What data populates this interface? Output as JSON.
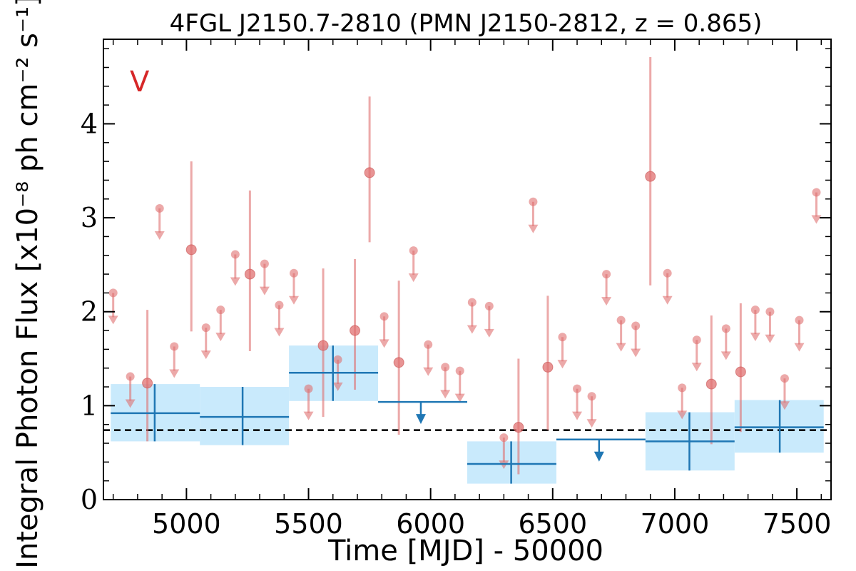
{
  "chart_data": {
    "type": "scatter",
    "title": "4FGL J2150.7-2810 (PMN J2150-2812, z = 0.865)",
    "xlabel": "Time [MJD] - 50000",
    "ylabel": "Integral Photon Flux [x10⁻⁸ ph cm⁻² s⁻¹]",
    "xlim": [
      4660,
      7640
    ],
    "ylim": [
      0,
      4.9
    ],
    "xticks": [
      5000,
      5500,
      6000,
      6500,
      7000,
      7500
    ],
    "xtick_labels": [
      "5000",
      "5500",
      "6000",
      "6500",
      "7000",
      "7500"
    ],
    "yticks": [
      0,
      1,
      2,
      3,
      4
    ],
    "ytick_labels": [
      "0",
      "1",
      "2",
      "3",
      "4"
    ],
    "panel_label": "V",
    "grid": false,
    "reference_level": 0.74,
    "colors": {
      "short_bins": "#e07070",
      "long_bins": "#1f77b4",
      "long_band": "#c9eafc",
      "reference": "#000000",
      "panel_label": "#d62728"
    },
    "series": [
      {
        "type": "short-bin detections",
        "points": [
          {
            "x": 4840,
            "y": 1.24,
            "lo": 0.62,
            "hi": 2.02
          },
          {
            "x": 5020,
            "y": 2.66,
            "lo": 1.79,
            "hi": 3.6
          },
          {
            "x": 5260,
            "y": 2.4,
            "lo": 1.58,
            "hi": 3.29
          },
          {
            "x": 5560,
            "y": 1.64,
            "lo": 0.88,
            "hi": 2.46
          },
          {
            "x": 5690,
            "y": 1.8,
            "lo": 1.17,
            "hi": 2.56
          },
          {
            "x": 5750,
            "y": 3.48,
            "lo": 2.74,
            "hi": 4.29
          },
          {
            "x": 5870,
            "y": 1.46,
            "lo": 0.69,
            "hi": 2.33
          },
          {
            "x": 6360,
            "y": 0.77,
            "lo": 0.27,
            "hi": 1.5
          },
          {
            "x": 6480,
            "y": 1.41,
            "lo": 0.74,
            "hi": 2.17
          },
          {
            "x": 6900,
            "y": 3.44,
            "lo": 2.28,
            "hi": 4.71
          },
          {
            "x": 7150,
            "y": 1.23,
            "lo": 0.59,
            "hi": 1.96
          },
          {
            "x": 7270,
            "y": 1.36,
            "lo": 0.72,
            "hi": 2.09
          }
        ]
      },
      {
        "type": "short-bin upper limits",
        "points": [
          {
            "x": 4700,
            "y": 2.2
          },
          {
            "x": 4770,
            "y": 1.31
          },
          {
            "x": 4890,
            "y": 3.1
          },
          {
            "x": 4950,
            "y": 1.63
          },
          {
            "x": 5080,
            "y": 1.83
          },
          {
            "x": 5140,
            "y": 2.02
          },
          {
            "x": 5200,
            "y": 2.61
          },
          {
            "x": 5320,
            "y": 2.51
          },
          {
            "x": 5380,
            "y": 2.07
          },
          {
            "x": 5440,
            "y": 2.41
          },
          {
            "x": 5500,
            "y": 1.18
          },
          {
            "x": 5620,
            "y": 1.49
          },
          {
            "x": 5810,
            "y": 1.95
          },
          {
            "x": 5930,
            "y": 2.65
          },
          {
            "x": 5990,
            "y": 1.65
          },
          {
            "x": 6060,
            "y": 1.41
          },
          {
            "x": 6120,
            "y": 1.37
          },
          {
            "x": 6170,
            "y": 2.1
          },
          {
            "x": 6240,
            "y": 2.06
          },
          {
            "x": 6300,
            "y": 0.66
          },
          {
            "x": 6420,
            "y": 3.17
          },
          {
            "x": 6540,
            "y": 1.73
          },
          {
            "x": 6600,
            "y": 1.18
          },
          {
            "x": 6660,
            "y": 1.1
          },
          {
            "x": 6720,
            "y": 2.4
          },
          {
            "x": 6780,
            "y": 1.91
          },
          {
            "x": 6840,
            "y": 1.85
          },
          {
            "x": 6970,
            "y": 2.41
          },
          {
            "x": 7030,
            "y": 1.19
          },
          {
            "x": 7090,
            "y": 1.7
          },
          {
            "x": 7210,
            "y": 1.82
          },
          {
            "x": 7330,
            "y": 2.02
          },
          {
            "x": 7390,
            "y": 2.0
          },
          {
            "x": 7450,
            "y": 1.29
          },
          {
            "x": 7510,
            "y": 1.91
          },
          {
            "x": 7580,
            "y": 3.27
          }
        ]
      },
      {
        "type": "long-bin detections",
        "points": [
          {
            "x0": 4690,
            "x1": 5055,
            "xc": 4870,
            "y": 0.92,
            "lo": 0.62,
            "hi": 1.23
          },
          {
            "x0": 5055,
            "x1": 5420,
            "xc": 5230,
            "y": 0.88,
            "lo": 0.58,
            "hi": 1.2
          },
          {
            "x0": 5420,
            "x1": 5785,
            "xc": 5600,
            "y": 1.35,
            "lo": 1.05,
            "hi": 1.64
          },
          {
            "x0": 6150,
            "x1": 6515,
            "xc": 6330,
            "y": 0.38,
            "lo": 0.17,
            "hi": 0.62
          },
          {
            "x0": 6880,
            "x1": 7245,
            "xc": 7060,
            "y": 0.62,
            "lo": 0.31,
            "hi": 0.93
          },
          {
            "x0": 7245,
            "x1": 7610,
            "xc": 7430,
            "y": 0.77,
            "lo": 0.5,
            "hi": 1.06
          }
        ]
      },
      {
        "type": "long-bin upper limits",
        "points": [
          {
            "x0": 5785,
            "x1": 6150,
            "xc": 5960,
            "y": 1.04
          },
          {
            "x0": 6515,
            "x1": 6880,
            "xc": 6690,
            "y": 0.64
          }
        ]
      }
    ]
  }
}
